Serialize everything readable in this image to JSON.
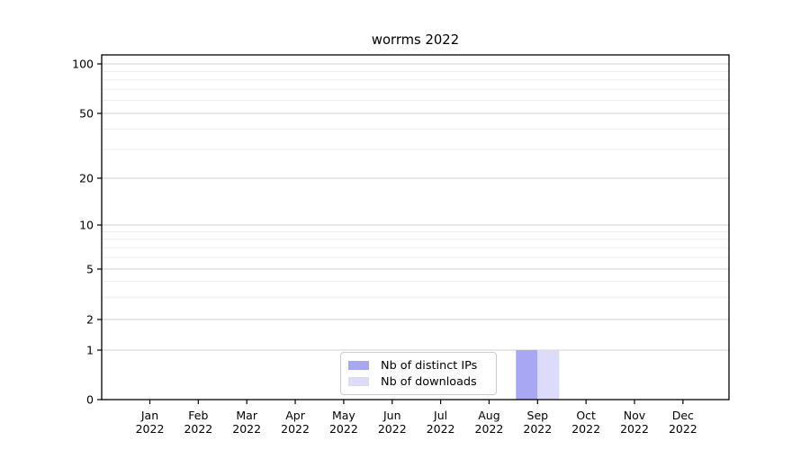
{
  "chart_data": {
    "type": "bar",
    "title": "worrms 2022",
    "categories": [
      "Jan 2022",
      "Feb 2022",
      "Mar 2022",
      "Apr 2022",
      "May 2022",
      "Jun 2022",
      "Jul 2022",
      "Aug 2022",
      "Sep 2022",
      "Oct 2022",
      "Nov 2022",
      "Dec 2022"
    ],
    "series": [
      {
        "name": "Nb of distinct IPs",
        "color": "#a7a7f4",
        "values": [
          0,
          0,
          0,
          0,
          0,
          0,
          0,
          0,
          1,
          0,
          0,
          0
        ]
      },
      {
        "name": "Nb of downloads",
        "color": "#dcdcfa",
        "values": [
          0,
          0,
          0,
          0,
          0,
          0,
          0,
          0,
          1,
          0,
          0,
          0
        ]
      }
    ],
    "y_axis": {
      "scale": "symlog",
      "tick_values": [
        0,
        1,
        2,
        5,
        10,
        20,
        50,
        100
      ],
      "tick_labels": [
        "0",
        "1",
        "2",
        "5",
        "10",
        "20",
        "50",
        "100"
      ],
      "range": [
        0,
        120
      ]
    },
    "x_axis": {
      "tick_labels_line1": [
        "Jan",
        "Feb",
        "Mar",
        "Apr",
        "May",
        "Jun",
        "Jul",
        "Aug",
        "Sep",
        "Oct",
        "Nov",
        "Dec"
      ],
      "tick_labels_line2": "2022"
    },
    "grid": {
      "enabled": true,
      "minor_values": [
        3,
        4,
        6,
        7,
        8,
        9,
        30,
        40,
        60,
        70,
        80,
        90
      ],
      "major_color": "#d2d2d2",
      "minor_color": "#ededed"
    },
    "legend": {
      "position": "lower center inside",
      "entries": [
        "Nb of distinct IPs",
        "Nb of downloads"
      ]
    },
    "colors": {
      "axis": "#000000",
      "text": "#000000",
      "background": "#ffffff"
    }
  }
}
